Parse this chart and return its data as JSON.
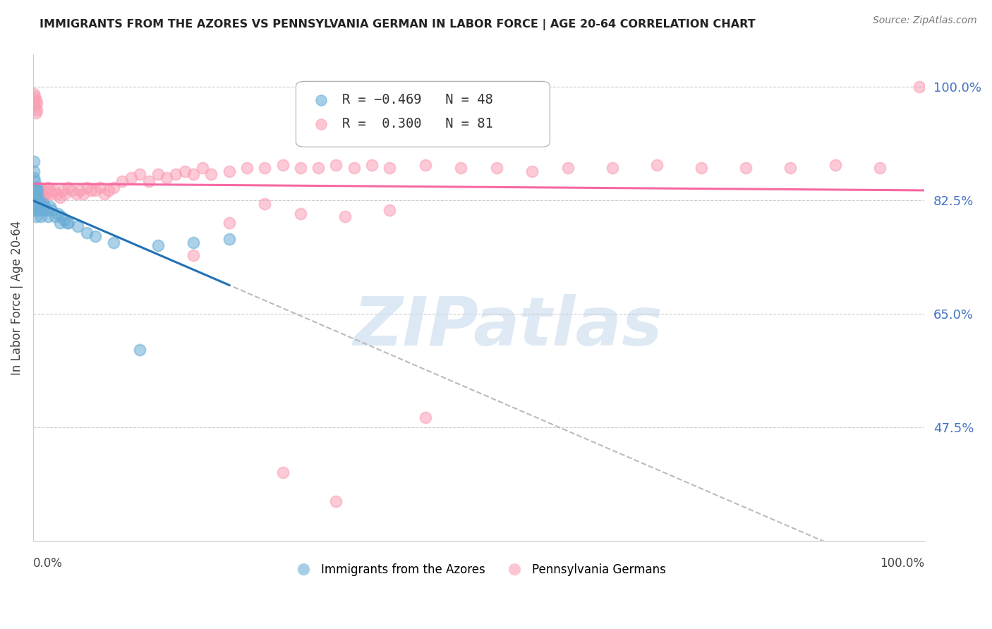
{
  "title": "IMMIGRANTS FROM THE AZORES VS PENNSYLVANIA GERMAN IN LABOR FORCE | AGE 20-64 CORRELATION CHART",
  "source": "Source: ZipAtlas.com",
  "ylabel": "In Labor Force | Age 20-64",
  "ytick_labels": [
    "100.0%",
    "82.5%",
    "65.0%",
    "47.5%"
  ],
  "ytick_values": [
    1.0,
    0.825,
    0.65,
    0.475
  ],
  "xlim": [
    0.0,
    1.0
  ],
  "ylim": [
    0.3,
    1.05
  ],
  "legend_blue_R": "-0.469",
  "legend_blue_N": "48",
  "legend_pink_R": "0.300",
  "legend_pink_N": "81",
  "legend_label_blue": "Immigrants from the Azores",
  "legend_label_pink": "Pennsylvania Germans",
  "blue_color": "#6baed6",
  "pink_color": "#fa9fb5",
  "trendline_blue_color": "#2171b5",
  "trendline_pink_color": "#f768a1",
  "blue_x": [
    0.001,
    0.001,
    0.001,
    0.002,
    0.002,
    0.002,
    0.002,
    0.002,
    0.003,
    0.003,
    0.003,
    0.003,
    0.004,
    0.004,
    0.004,
    0.005,
    0.005,
    0.005,
    0.006,
    0.006,
    0.007,
    0.007,
    0.008,
    0.008,
    0.009,
    0.01,
    0.011,
    0.012,
    0.013,
    0.015,
    0.017,
    0.019,
    0.021,
    0.025,
    0.028,
    0.03,
    0.032,
    0.035,
    0.038,
    0.04,
    0.05,
    0.06,
    0.07,
    0.09,
    0.12,
    0.14,
    0.18,
    0.22
  ],
  "blue_y": [
    0.885,
    0.87,
    0.86,
    0.855,
    0.84,
    0.83,
    0.82,
    0.81,
    0.84,
    0.83,
    0.82,
    0.8,
    0.845,
    0.83,
    0.815,
    0.84,
    0.82,
    0.81,
    0.83,
    0.82,
    0.82,
    0.815,
    0.82,
    0.815,
    0.8,
    0.815,
    0.81,
    0.82,
    0.815,
    0.81,
    0.8,
    0.815,
    0.81,
    0.8,
    0.805,
    0.79,
    0.8,
    0.795,
    0.79,
    0.79,
    0.785,
    0.775,
    0.77,
    0.76,
    0.595,
    0.755,
    0.76,
    0.765
  ],
  "pink_x": [
    0.001,
    0.001,
    0.002,
    0.002,
    0.003,
    0.003,
    0.004,
    0.004,
    0.005,
    0.006,
    0.007,
    0.008,
    0.009,
    0.01,
    0.011,
    0.012,
    0.013,
    0.015,
    0.017,
    0.019,
    0.021,
    0.024,
    0.027,
    0.03,
    0.033,
    0.036,
    0.04,
    0.044,
    0.048,
    0.052,
    0.056,
    0.06,
    0.065,
    0.07,
    0.075,
    0.08,
    0.085,
    0.09,
    0.1,
    0.11,
    0.12,
    0.13,
    0.14,
    0.15,
    0.16,
    0.17,
    0.18,
    0.19,
    0.2,
    0.22,
    0.24,
    0.26,
    0.28,
    0.3,
    0.32,
    0.34,
    0.36,
    0.38,
    0.4,
    0.44,
    0.48,
    0.52,
    0.56,
    0.6,
    0.65,
    0.7,
    0.75,
    0.8,
    0.85,
    0.9,
    0.95,
    0.995,
    0.28,
    0.34,
    0.44,
    0.18,
    0.22,
    0.26,
    0.3,
    0.35,
    0.4
  ],
  "pink_y": [
    0.99,
    0.975,
    0.985,
    0.97,
    0.98,
    0.96,
    0.975,
    0.965,
    0.84,
    0.83,
    0.845,
    0.835,
    0.83,
    0.84,
    0.835,
    0.83,
    0.84,
    0.835,
    0.845,
    0.84,
    0.835,
    0.84,
    0.835,
    0.83,
    0.84,
    0.835,
    0.845,
    0.84,
    0.835,
    0.84,
    0.835,
    0.845,
    0.84,
    0.84,
    0.845,
    0.835,
    0.84,
    0.845,
    0.855,
    0.86,
    0.865,
    0.855,
    0.865,
    0.86,
    0.865,
    0.87,
    0.865,
    0.875,
    0.865,
    0.87,
    0.875,
    0.875,
    0.88,
    0.875,
    0.875,
    0.88,
    0.875,
    0.88,
    0.875,
    0.88,
    0.875,
    0.875,
    0.87,
    0.875,
    0.875,
    0.88,
    0.875,
    0.875,
    0.875,
    0.88,
    0.875,
    1.0,
    0.405,
    0.36,
    0.49,
    0.74,
    0.79,
    0.82,
    0.805,
    0.8,
    0.81
  ]
}
